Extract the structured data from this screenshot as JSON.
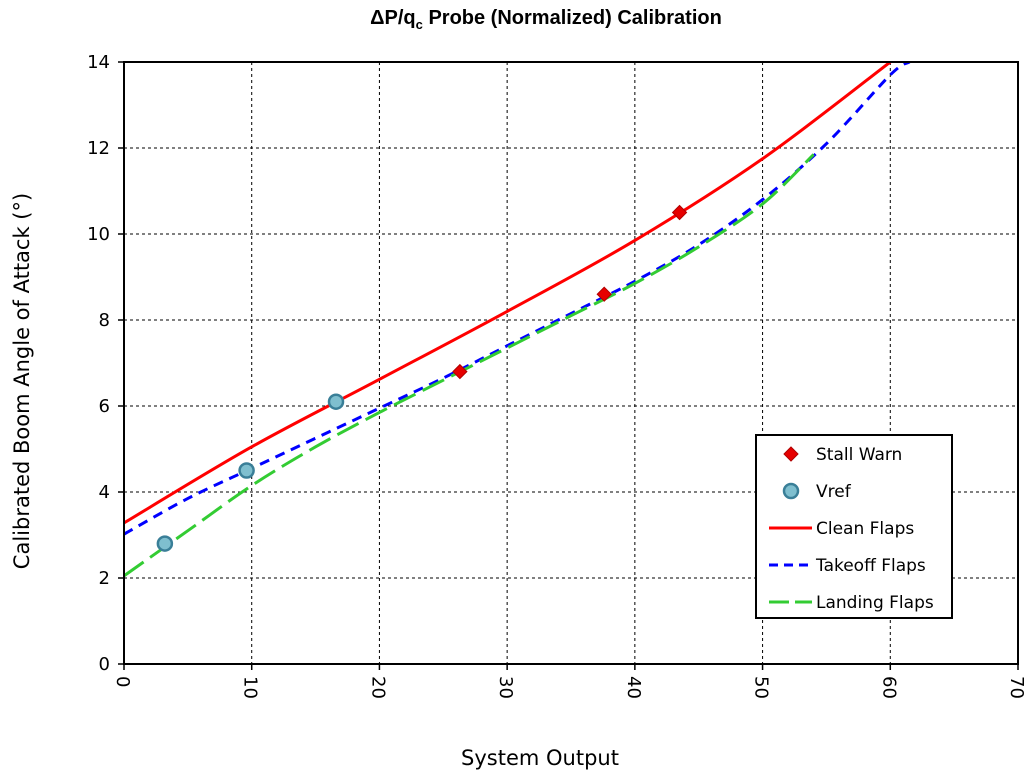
{
  "chart_data": {
    "type": "line",
    "title_main": "ΔP/q",
    "title_sub": "c",
    "title_rest": " Probe (Normalized) Calibration",
    "xlabel": "System Output",
    "ylabel": "Calibrated Boom Angle of Attack (°)",
    "xlim": [
      0,
      70
    ],
    "ylim": [
      0,
      14
    ],
    "x_ticks": [
      0,
      10,
      20,
      30,
      40,
      50,
      60,
      70
    ],
    "y_ticks": [
      0,
      2,
      4,
      6,
      8,
      10,
      12,
      14
    ],
    "grid": true,
    "legend_position": "lower-right",
    "series": [
      {
        "name": "Clean Flaps",
        "kind": "line",
        "color": "#ff0000",
        "dash": "solid",
        "x": [
          0,
          10,
          20,
          30,
          40,
          50,
          60
        ],
        "y": [
          3.28,
          5.05,
          6.62,
          8.2,
          9.85,
          11.75,
          14.0
        ]
      },
      {
        "name": "Takeoff Flaps",
        "kind": "line",
        "color": "#0000ff",
        "dash": "short",
        "x": [
          0,
          5,
          10,
          15,
          20,
          25,
          30,
          35,
          40,
          45,
          50,
          55,
          60,
          61.5
        ],
        "y": [
          3.02,
          3.85,
          4.55,
          5.25,
          5.95,
          6.65,
          7.4,
          8.15,
          8.9,
          9.75,
          10.8,
          12.1,
          13.7,
          14.0
        ]
      },
      {
        "name": "Landing Flaps",
        "kind": "line",
        "color": "#33cc33",
        "dash": "long",
        "x": [
          0,
          5,
          10,
          15,
          20,
          25,
          30,
          35,
          40,
          45,
          50,
          54
        ],
        "y": [
          2.05,
          3.1,
          4.15,
          5.05,
          5.85,
          6.6,
          7.35,
          8.1,
          8.85,
          9.7,
          10.7,
          11.85
        ]
      },
      {
        "name": "Stall Warn",
        "kind": "marker",
        "marker": "diamond",
        "color": "#e60000",
        "x": [
          26.3,
          37.6,
          43.5
        ],
        "y": [
          6.8,
          8.6,
          10.5
        ]
      },
      {
        "name": "Vref",
        "kind": "marker",
        "marker": "circle",
        "color": "#7fbfcf",
        "edge": "#3a7f98",
        "x": [
          3.2,
          9.6,
          16.6
        ],
        "y": [
          2.8,
          4.5,
          6.1
        ]
      }
    ],
    "legend_order": [
      "Stall Warn",
      "Vref",
      "Clean Flaps",
      "Takeoff Flaps",
      "Landing Flaps"
    ]
  }
}
